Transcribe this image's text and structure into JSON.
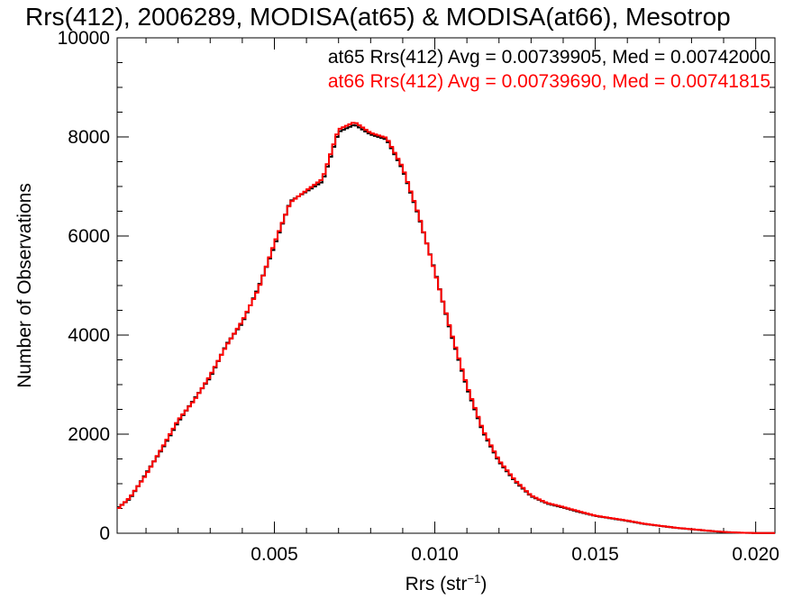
{
  "chart_data": {
    "type": "line",
    "title": "Rrs(412), 2006289, MODISA(at65) & MODISA(at66), Mesotrop",
    "xlabel_base": "Rrs (str",
    "xlabel_sup": "−1",
    "xlabel_close": ")",
    "ylabel": "Number of Observations",
    "xlim": [
      0.0001,
      0.0206
    ],
    "ylim": [
      0,
      10000
    ],
    "xticks": [
      0.005,
      0.01,
      0.015,
      0.02
    ],
    "xtick_labels": [
      "0.005",
      "0.010",
      "0.015",
      "0.020"
    ],
    "yticks": [
      0,
      2000,
      4000,
      6000,
      8000,
      10000
    ],
    "ytick_labels": [
      "0",
      "2000",
      "4000",
      "6000",
      "8000",
      "10000"
    ],
    "grid": false,
    "legend_position": "top-right",
    "series": [
      {
        "name": "at65 Rrs(412) Avg = 0.00739905, Med = 0.00742000",
        "color": "#000000",
        "x": [
          0.0001,
          0.0005,
          0.001,
          0.0015,
          0.002,
          0.0025,
          0.003,
          0.0035,
          0.004,
          0.0045,
          0.005,
          0.0055,
          0.006,
          0.0065,
          0.007,
          0.0075,
          0.008,
          0.0085,
          0.009,
          0.0095,
          0.01,
          0.0105,
          0.011,
          0.0115,
          0.012,
          0.0125,
          0.013,
          0.0135,
          0.014,
          0.0145,
          0.015,
          0.0155,
          0.016,
          0.0165,
          0.017,
          0.0175,
          0.018,
          0.0185,
          0.019,
          0.0195,
          0.02,
          0.0206
        ],
        "y": [
          500,
          700,
          1200,
          1700,
          2250,
          2700,
          3150,
          3800,
          4250,
          4950,
          5800,
          6700,
          6900,
          7100,
          8100,
          8250,
          8050,
          7950,
          7350,
          6400,
          5300,
          4050,
          2950,
          2050,
          1450,
          1050,
          750,
          600,
          520,
          430,
          350,
          300,
          250,
          190,
          150,
          110,
          80,
          50,
          25,
          10,
          5,
          5
        ]
      },
      {
        "name": "at66 Rrs(412) Avg = 0.00739690, Med = 0.00741815",
        "color": "#ff0000",
        "x": [
          0.0001,
          0.0005,
          0.001,
          0.0015,
          0.002,
          0.0025,
          0.003,
          0.0035,
          0.004,
          0.0045,
          0.005,
          0.0055,
          0.006,
          0.0065,
          0.007,
          0.0075,
          0.008,
          0.0085,
          0.009,
          0.0095,
          0.01,
          0.0105,
          0.011,
          0.0115,
          0.012,
          0.0125,
          0.013,
          0.0135,
          0.014,
          0.0145,
          0.015,
          0.0155,
          0.016,
          0.0165,
          0.017,
          0.0175,
          0.018,
          0.0185,
          0.019,
          0.0195,
          0.02,
          0.0206
        ],
        "y": [
          480,
          720,
          1180,
          1720,
          2280,
          2680,
          3180,
          3780,
          4280,
          4920,
          5850,
          6680,
          6920,
          7150,
          8150,
          8300,
          8080,
          7980,
          7380,
          6420,
          5280,
          4080,
          2980,
          2080,
          1470,
          1070,
          760,
          610,
          530,
          440,
          355,
          305,
          255,
          195,
          152,
          112,
          82,
          52,
          26,
          11,
          5,
          5
        ]
      }
    ]
  }
}
